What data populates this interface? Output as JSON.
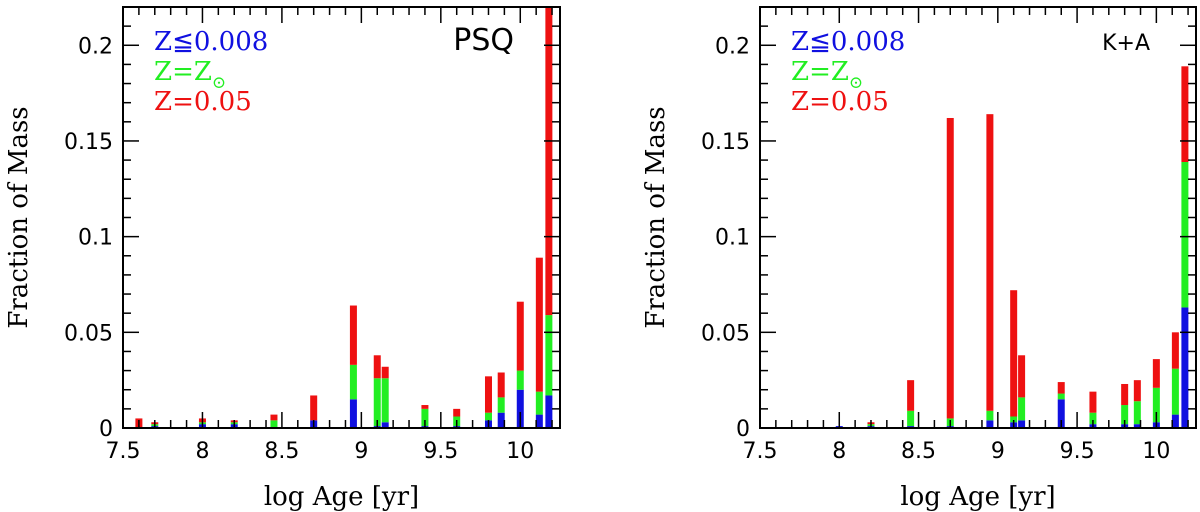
{
  "chart_data": [
    {
      "type": "bar",
      "stacked": true,
      "title": "PSQ",
      "xlabel": "log Age [yr]",
      "ylabel": "Fraction of Mass",
      "xlim": [
        7.5,
        10.25
      ],
      "ylim": [
        0,
        0.22
      ],
      "xticks": [
        7.5,
        8,
        8.5,
        9,
        9.5,
        10
      ],
      "xtick_labels": [
        "7.5",
        "8",
        "8.5",
        "9",
        "9.5",
        "10"
      ],
      "yticks": [
        0,
        0.05,
        0.1,
        0.15,
        0.2
      ],
      "ytick_labels": [
        "0",
        "0.05",
        "0.1",
        "0.15",
        "0.2"
      ],
      "legend": {
        "placement": "top-left",
        "entries": [
          {
            "text": "Z≦0.008",
            "color": "#1010e0"
          },
          {
            "text": "Z=Z",
            "subscript": "⊙",
            "color": "#22ee22"
          },
          {
            "text": "Z=0.05",
            "color": "#ee1111"
          }
        ]
      },
      "x": [
        7.6,
        7.7,
        8.0,
        8.2,
        8.45,
        8.7,
        8.95,
        9.1,
        9.15,
        9.4,
        9.6,
        9.8,
        9.88,
        10.0,
        10.12,
        10.18
      ],
      "series": [
        {
          "name": "Z≦0.008",
          "color": "#1010e0",
          "values": [
            0.0,
            0.001,
            0.002,
            0.002,
            0.0,
            0.004,
            0.015,
            0.001,
            0.003,
            0.001,
            0.001,
            0.004,
            0.008,
            0.02,
            0.007,
            0.017
          ]
        },
        {
          "name": "Z=Z⊙",
          "color": "#22ee22",
          "values": [
            0.0,
            0.001,
            0.001,
            0.001,
            0.004,
            0.0,
            0.018,
            0.025,
            0.023,
            0.009,
            0.005,
            0.004,
            0.008,
            0.01,
            0.012,
            0.042
          ]
        },
        {
          "name": "Z=0.05",
          "color": "#ee1111",
          "values": [
            0.005,
            0.001,
            0.002,
            0.001,
            0.003,
            0.013,
            0.031,
            0.012,
            0.006,
            0.002,
            0.004,
            0.019,
            0.013,
            0.036,
            0.07,
            0.161
          ]
        }
      ]
    },
    {
      "type": "bar",
      "stacked": true,
      "title": "K+A",
      "xlabel": "log Age [yr]",
      "ylabel": "Fraction of Mass",
      "xlim": [
        7.5,
        10.25
      ],
      "ylim": [
        0,
        0.22
      ],
      "xticks": [
        7.5,
        8,
        8.5,
        9,
        9.5,
        10
      ],
      "xtick_labels": [
        "7.5",
        "8",
        "8.5",
        "9",
        "9.5",
        "10"
      ],
      "yticks": [
        0,
        0.05,
        0.1,
        0.15,
        0.2
      ],
      "ytick_labels": [
        "0",
        "0.05",
        "0.1",
        "0.15",
        "0.2"
      ],
      "legend": {
        "placement": "top-left",
        "entries": [
          {
            "text": "Z≦0.008",
            "color": "#1010e0"
          },
          {
            "text": "Z=Z",
            "subscript": "⊙",
            "color": "#22ee22"
          },
          {
            "text": "Z=0.05",
            "color": "#ee1111"
          }
        ]
      },
      "x": [
        8.0,
        8.2,
        8.45,
        8.7,
        8.95,
        9.1,
        9.15,
        9.4,
        9.6,
        9.8,
        9.88,
        10.0,
        10.12,
        10.18
      ],
      "series": [
        {
          "name": "Z≦0.008",
          "color": "#1010e0",
          "values": [
            0.001,
            0.001,
            0.001,
            0.001,
            0.004,
            0.003,
            0.004,
            0.015,
            0.002,
            0.002,
            0.002,
            0.003,
            0.007,
            0.063
          ]
        },
        {
          "name": "Z=Z⊙",
          "color": "#22ee22",
          "values": [
            0.0,
            0.001,
            0.008,
            0.004,
            0.005,
            0.003,
            0.012,
            0.003,
            0.006,
            0.01,
            0.012,
            0.018,
            0.024,
            0.076
          ]
        },
        {
          "name": "Z=0.05",
          "color": "#ee1111",
          "values": [
            0.0,
            0.001,
            0.016,
            0.157,
            0.155,
            0.066,
            0.022,
            0.006,
            0.011,
            0.011,
            0.011,
            0.015,
            0.019,
            0.05
          ]
        }
      ]
    }
  ]
}
